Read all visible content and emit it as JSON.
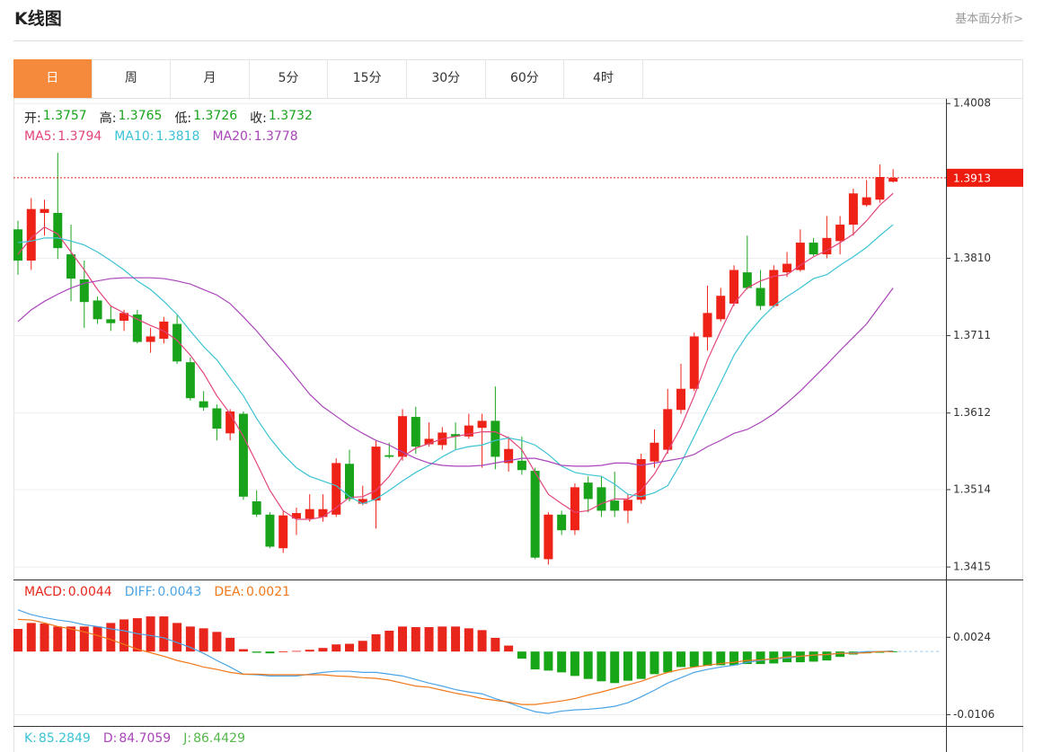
{
  "header": {
    "title": "K线图",
    "link": "基本面分析>"
  },
  "tabs": [
    "日",
    "周",
    "月",
    "5分",
    "15分",
    "30分",
    "60分",
    "4时"
  ],
  "active_tab": 0,
  "ohlc_info": [
    {
      "label": "开:",
      "value": "1.3757"
    },
    {
      "label": "高:",
      "value": "1.3765"
    },
    {
      "label": "低:",
      "value": "1.3726"
    },
    {
      "label": "收:",
      "value": "1.3732"
    }
  ],
  "chart_data": [
    {
      "type": "candlestick",
      "up_color": "#ee2216",
      "down_color": "#19a31b",
      "current_price": 1.3913,
      "ylim": [
        1.3399,
        1.4014
      ],
      "yticks": [
        1.3415,
        1.3514,
        1.3612,
        1.3711,
        {
          "value": 1.381,
          "label": "1.3810"
        },
        1.4008
      ],
      "grid": true,
      "open": [
        1.3847,
        1.3807,
        1.3868,
        1.3868,
        1.3815,
        1.3783,
        1.3756,
        1.3732,
        1.373,
        1.3738,
        1.3703,
        1.3707,
        1.3726,
        1.3677,
        1.3627,
        1.3618,
        1.3586,
        1.3611,
        1.3499,
        1.3482,
        1.3439,
        1.3477,
        1.3477,
        1.3479,
        1.3482,
        1.3547,
        1.3496,
        1.35,
        1.3558,
        1.3556,
        1.3607,
        1.3572,
        1.3571,
        1.3585,
        1.3582,
        1.3593,
        1.3602,
        1.3548,
        1.3551,
        1.3538,
        1.3425,
        1.3482,
        1.3462,
        1.3523,
        1.3517,
        1.35,
        1.3487,
        1.3501,
        1.355,
        1.3565,
        1.3616,
        1.3643,
        1.3709,
        1.3732,
        1.3752,
        1.3792,
        1.3772,
        1.3749,
        1.3792,
        1.3795,
        1.383,
        1.3815,
        1.3832,
        1.3853,
        1.3878,
        1.3885,
        1.3908
      ],
      "high": [
        1.3858,
        1.3887,
        1.3885,
        1.3945,
        1.3853,
        1.3807,
        1.3761,
        1.3749,
        1.3744,
        1.3744,
        1.3721,
        1.3735,
        1.3738,
        1.3683,
        1.364,
        1.3623,
        1.3617,
        1.3614,
        1.3513,
        1.3485,
        1.3487,
        1.3491,
        1.3508,
        1.3508,
        1.3554,
        1.3565,
        1.3519,
        1.3577,
        1.3574,
        1.3617,
        1.362,
        1.36,
        1.3594,
        1.36,
        1.3611,
        1.3611,
        1.3646,
        1.3582,
        1.3582,
        1.3542,
        1.3485,
        1.3487,
        1.3522,
        1.3531,
        1.3531,
        1.3537,
        1.3508,
        1.356,
        1.3591,
        1.3643,
        1.3675,
        1.3715,
        1.3775,
        1.3772,
        1.3801,
        1.3839,
        1.3795,
        1.3801,
        1.3818,
        1.3847,
        1.3836,
        1.3864,
        1.3864,
        1.3899,
        1.391,
        1.393,
        1.3924
      ],
      "low": [
        1.3789,
        1.3795,
        1.3839,
        1.3809,
        1.3755,
        1.3721,
        1.3726,
        1.3717,
        1.3717,
        1.3701,
        1.3689,
        1.3701,
        1.3675,
        1.3628,
        1.3615,
        1.3577,
        1.3577,
        1.3501,
        1.3479,
        1.3439,
        1.3433,
        1.3456,
        1.3473,
        1.3473,
        1.3479,
        1.3499,
        1.3494,
        1.3464,
        1.3554,
        1.3551,
        1.356,
        1.3569,
        1.3565,
        1.3565,
        1.3579,
        1.3542,
        1.354,
        1.3537,
        1.3533,
        1.3425,
        1.3418,
        1.3456,
        1.3456,
        1.3485,
        1.3479,
        1.3479,
        1.3471,
        1.3496,
        1.3542,
        1.356,
        1.3611,
        1.364,
        1.3692,
        1.3729,
        1.3749,
        1.377,
        1.3744,
        1.3747,
        1.3786,
        1.3793,
        1.3813,
        1.381,
        1.3815,
        1.3839,
        1.3876,
        1.3881,
        1.3907
      ],
      "close": [
        1.3807,
        1.3873,
        1.3873,
        1.3823,
        1.3784,
        1.3754,
        1.3732,
        1.3727,
        1.374,
        1.3703,
        1.371,
        1.3729,
        1.3678,
        1.3631,
        1.3619,
        1.3592,
        1.3614,
        1.3505,
        1.3482,
        1.3441,
        1.3481,
        1.3484,
        1.3489,
        1.3489,
        1.3548,
        1.3502,
        1.3502,
        1.3569,
        1.3556,
        1.3608,
        1.3569,
        1.3579,
        1.3587,
        1.3582,
        1.3596,
        1.3602,
        1.3556,
        1.3566,
        1.3539,
        1.3427,
        1.3482,
        1.3462,
        1.3517,
        1.3502,
        1.3487,
        1.3487,
        1.3501,
        1.3553,
        1.3574,
        1.3617,
        1.3643,
        1.371,
        1.374,
        1.3762,
        1.3795,
        1.3772,
        1.3749,
        1.3795,
        1.3803,
        1.383,
        1.3815,
        1.3836,
        1.3853,
        1.3893,
        1.3888,
        1.3914,
        1.3913
      ],
      "series": [
        {
          "label": "MA5:",
          "value_text": "1.3794",
          "color": "#e2457c",
          "values": [
            1.3815,
            1.3836,
            1.385,
            1.3841,
            1.3818,
            1.3795,
            1.377,
            1.3749,
            1.374,
            1.3732,
            1.3724,
            1.3717,
            1.3705,
            1.3686,
            1.3663,
            1.3634,
            1.3611,
            1.3582,
            1.3548,
            1.3513,
            1.3487,
            1.3476,
            1.3476,
            1.3479,
            1.3491,
            1.3504,
            1.3505,
            1.3513,
            1.3531,
            1.3556,
            1.3567,
            1.3573,
            1.3579,
            1.3582,
            1.3585,
            1.3588,
            1.3588,
            1.358,
            1.3565,
            1.3536,
            1.3508,
            1.3496,
            1.3485,
            1.3487,
            1.3496,
            1.3502,
            1.3502,
            1.3513,
            1.3534,
            1.3563,
            1.3594,
            1.3634,
            1.368,
            1.3717,
            1.3752,
            1.3772,
            1.3781,
            1.3787,
            1.3789,
            1.3801,
            1.3812,
            1.382,
            1.383,
            1.3841,
            1.3858,
            1.3878,
            1.3893
          ]
        },
        {
          "label": "MA10:",
          "value_text": "1.3818",
          "color": "#3cc3d3",
          "values": [
            1.383,
            1.3832,
            1.3836,
            1.3836,
            1.3832,
            1.3827,
            1.3818,
            1.3807,
            1.3795,
            1.3781,
            1.377,
            1.3755,
            1.3738,
            1.3717,
            1.3697,
            1.368,
            1.3657,
            1.3634,
            1.3605,
            1.358,
            1.3559,
            1.3542,
            1.3531,
            1.3525,
            1.3519,
            1.3505,
            1.3496,
            1.3502,
            1.3513,
            1.3525,
            1.3536,
            1.3545,
            1.3556,
            1.3565,
            1.3569,
            1.3571,
            1.3577,
            1.358,
            1.3577,
            1.3571,
            1.3559,
            1.3544,
            1.3536,
            1.3533,
            1.3531,
            1.3521,
            1.3508,
            1.3505,
            1.351,
            1.3519,
            1.3548,
            1.3582,
            1.3617,
            1.3651,
            1.3686,
            1.3712,
            1.3732,
            1.3749,
            1.3761,
            1.3772,
            1.3784,
            1.3789,
            1.3801,
            1.3812,
            1.3824,
            1.3839,
            1.3853
          ]
        },
        {
          "label": "MA20:",
          "value_text": "1.3778",
          "color": "#a945b9",
          "values": [
            1.3729,
            1.3744,
            1.3755,
            1.3764,
            1.3772,
            1.3778,
            1.3781,
            1.3784,
            1.3785,
            1.3785,
            1.3785,
            1.3784,
            1.3781,
            1.3777,
            1.377,
            1.3763,
            1.3752,
            1.3735,
            1.3717,
            1.3697,
            1.3678,
            1.3657,
            1.3636,
            1.362,
            1.3608,
            1.3596,
            1.3586,
            1.3577,
            1.3571,
            1.3562,
            1.3554,
            1.3548,
            1.3545,
            1.3544,
            1.3544,
            1.3545,
            1.3548,
            1.3551,
            1.3554,
            1.3554,
            1.355,
            1.3545,
            1.3544,
            1.3544,
            1.3545,
            1.3548,
            1.3548,
            1.3545,
            1.3548,
            1.3551,
            1.3554,
            1.3559,
            1.3569,
            1.3577,
            1.3586,
            1.3591,
            1.36,
            1.3611,
            1.3625,
            1.364,
            1.3657,
            1.3674,
            1.3692,
            1.3709,
            1.3726,
            1.3749,
            1.3772
          ]
        }
      ]
    },
    {
      "type": "macd",
      "ylim": [
        -0.0125,
        0.0118
      ],
      "yticks": [
        -0.0106,
        0.0024
      ],
      "grid": true,
      "histogram": {
        "label": "MACD:",
        "value_text": "0.0044",
        "color": "#e8261b",
        "up_color": "#e8261b",
        "down_color": "#17a617",
        "values": [
          0.0038,
          0.0048,
          0.0047,
          0.0042,
          0.0042,
          0.0042,
          0.0042,
          0.0048,
          0.0054,
          0.0056,
          0.0059,
          0.0059,
          0.0048,
          0.0042,
          0.0039,
          0.0033,
          0.0023,
          0.0004,
          -0.0002,
          -0.0003,
          0,
          0.0001,
          0.0003,
          0.0006,
          0.0012,
          0.0013,
          0.0018,
          0.0029,
          0.0035,
          0.0042,
          0.0041,
          0.0041,
          0.0042,
          0.0042,
          0.0039,
          0.0036,
          0.0023,
          0.001,
          -0.0012,
          -0.003,
          -0.0032,
          -0.0035,
          -0.0041,
          -0.0046,
          -0.005,
          -0.0053,
          -0.0049,
          -0.0046,
          -0.0038,
          -0.0035,
          -0.0026,
          -0.0026,
          -0.0024,
          -0.0023,
          -0.0023,
          -0.0021,
          -0.0021,
          -0.002,
          -0.0018,
          -0.0018,
          -0.0017,
          -0.0015,
          -0.0009,
          -0.0005,
          -0.0003,
          -0.0002,
          -0.0001
        ]
      },
      "series": [
        {
          "label": "DIFF:",
          "value_text": "0.0043",
          "color": "#4ba4e6",
          "values": [
            0.007,
            0.0062,
            0.0057,
            0.0053,
            0.005,
            0.0045,
            0.0042,
            0.0038,
            0.0035,
            0.003,
            0.0027,
            0.0023,
            0.0015,
            0.0007,
            -0.0003,
            -0.0015,
            -0.0026,
            -0.0038,
            -0.0039,
            -0.0041,
            -0.0041,
            -0.0041,
            -0.0038,
            -0.0035,
            -0.0033,
            -0.0033,
            -0.0035,
            -0.0035,
            -0.0038,
            -0.0041,
            -0.0047,
            -0.0053,
            -0.0058,
            -0.0064,
            -0.0068,
            -0.0071,
            -0.0079,
            -0.0086,
            -0.0094,
            -0.0101,
            -0.0104,
            -0.01,
            -0.0098,
            -0.0097,
            -0.0095,
            -0.0092,
            -0.0086,
            -0.0076,
            -0.0065,
            -0.0053,
            -0.0044,
            -0.0035,
            -0.003,
            -0.0026,
            -0.0023,
            -0.0018,
            -0.0015,
            -0.0012,
            -0.0011,
            -0.0008,
            -0.0006,
            -0.0005,
            -0.0003,
            -0.0002,
            0,
            0,
            0.0001
          ]
        },
        {
          "label": "DEA:",
          "value_text": "0.0021",
          "color": "#f0781a",
          "values": [
            0.0054,
            0.0053,
            0.0048,
            0.0042,
            0.0038,
            0.0033,
            0.0027,
            0.002,
            0.0012,
            0.0004,
            -0.0002,
            -0.0008,
            -0.0015,
            -0.002,
            -0.0026,
            -0.003,
            -0.0035,
            -0.0038,
            -0.0038,
            -0.0039,
            -0.0039,
            -0.0039,
            -0.0039,
            -0.0039,
            -0.0041,
            -0.0042,
            -0.0044,
            -0.0045,
            -0.0048,
            -0.0053,
            -0.0058,
            -0.006,
            -0.0065,
            -0.007,
            -0.0074,
            -0.0079,
            -0.0082,
            -0.0085,
            -0.0089,
            -0.0089,
            -0.0086,
            -0.0083,
            -0.0079,
            -0.0073,
            -0.0068,
            -0.0062,
            -0.0056,
            -0.005,
            -0.0042,
            -0.0035,
            -0.003,
            -0.0026,
            -0.0023,
            -0.002,
            -0.0018,
            -0.0015,
            -0.0014,
            -0.0012,
            -0.0009,
            -0.0008,
            -0.0006,
            -0.0005,
            -0.0003,
            -0.0003,
            -0.0002,
            0,
            0
          ]
        }
      ]
    }
  ],
  "kdj": [
    {
      "label": "K:",
      "value_text": "85.2849",
      "color": "#3cc3d3"
    },
    {
      "label": "D:",
      "value_text": "84.7059",
      "color": "#a945b9"
    },
    {
      "label": "J:",
      "value_text": "86.4429",
      "color": "#55b84a"
    }
  ]
}
